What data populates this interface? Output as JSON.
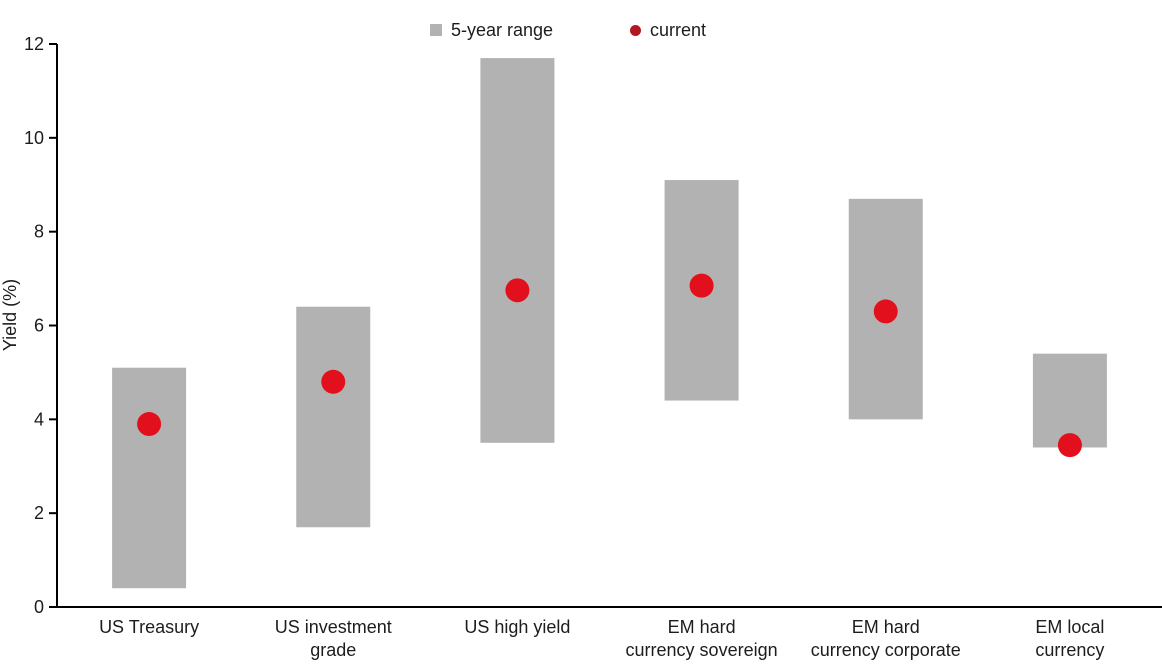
{
  "chart_data": {
    "type": "bar",
    "subtype": "floating-range-bars-with-current-dot",
    "title": "",
    "ylabel": "Yield (%)",
    "ylim": [
      0,
      12
    ],
    "yticks": [
      0,
      2,
      4,
      6,
      8,
      10,
      12
    ],
    "grid": false,
    "legend_position": "top-center",
    "categories": [
      "US Treasury",
      "US investment grade",
      "US high yield",
      "EM hard currency sovereign",
      "EM hard currency corporate",
      "EM local currency"
    ],
    "category_lines": [
      [
        "US Treasury"
      ],
      [
        "US investment",
        "grade"
      ],
      [
        "US high yield"
      ],
      [
        "EM hard",
        "currency sovereign"
      ],
      [
        "EM hard",
        "currency corporate"
      ],
      [
        "EM local",
        "currency"
      ]
    ],
    "series": [
      {
        "name": "5-year range",
        "type": "range",
        "color": "#b2b2b2",
        "low": [
          0.4,
          1.7,
          3.5,
          4.4,
          4.0,
          3.4
        ],
        "high": [
          5.1,
          6.4,
          11.7,
          9.1,
          8.7,
          5.4
        ]
      },
      {
        "name": "current",
        "type": "dot",
        "color": "#e2101c",
        "legend_color": "#b01822",
        "values": [
          3.9,
          4.8,
          6.75,
          6.85,
          6.3,
          3.45
        ]
      }
    ],
    "axis_color": "#000000",
    "text_color": "#1d1d1b"
  }
}
